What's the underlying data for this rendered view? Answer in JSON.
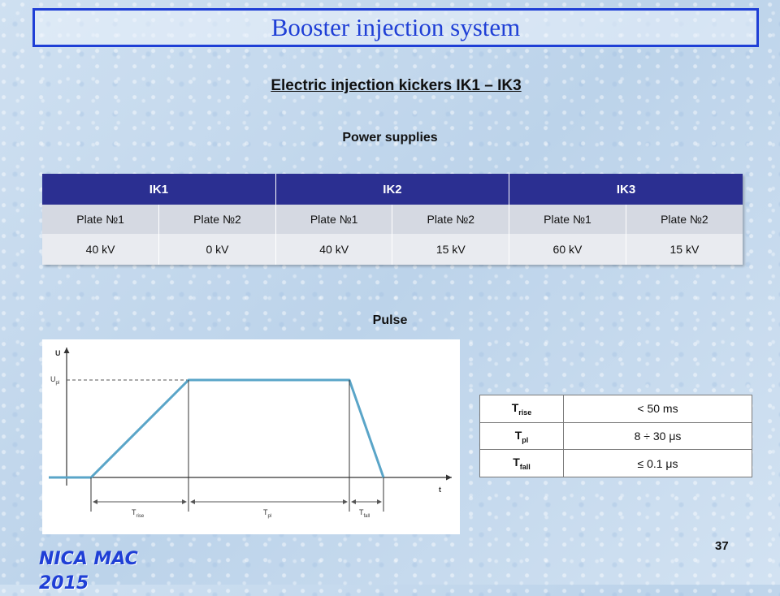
{
  "header": {
    "title": "Booster injection system"
  },
  "subtitle": "Electric injection kickers IK1 – IK3",
  "power_supplies": {
    "label": "Power supplies",
    "groups": [
      "IK1",
      "IK2",
      "IK3"
    ],
    "plates": [
      "Plate №1",
      "Plate №2",
      "Plate №1",
      "Plate №2",
      "Plate №1",
      "Plate №2"
    ],
    "voltages": [
      "40 kV",
      "0 kV",
      "40 kV",
      "15 kV",
      "60 kV",
      "15 kV"
    ]
  },
  "pulse": {
    "label": "Pulse",
    "axis_y": "U",
    "axis_x": "t",
    "u_level": "U",
    "u_level_sub": "pl",
    "t_labels": [
      {
        "main": "T",
        "sub": "rise"
      },
      {
        "main": "T",
        "sub": "pl"
      },
      {
        "main": "T",
        "sub": "fall"
      }
    ],
    "colors": {
      "pulse": "#5aa5c8",
      "axes": "#333333"
    }
  },
  "params": [
    {
      "key": "T",
      "sub": "rise",
      "value": "< 50 ms"
    },
    {
      "key": "T",
      "sub": "pl",
      "value": "8 ÷ 30 μs"
    },
    {
      "key": "T",
      "sub": "fall",
      "value": "≤ 0.1 μs"
    }
  ],
  "footer": {
    "logo": "NICA MAC 2015",
    "page": "37"
  }
}
